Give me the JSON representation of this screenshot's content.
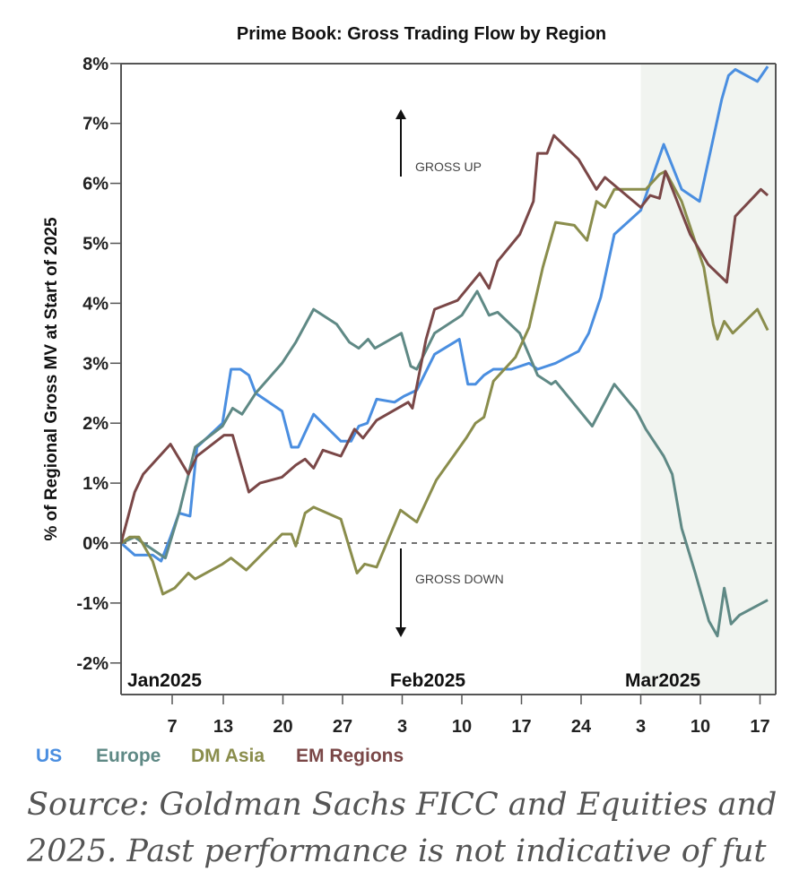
{
  "chart_data": {
    "type": "line",
    "title": "Prime Book: Gross Trading Flow by Region",
    "ylabel": "% of Regional Gross MV at Start of 2025",
    "xlabel": "",
    "x_units": "days since Jan 1, 2025",
    "ylim": [
      -2.5,
      8
    ],
    "xlim": [
      0,
      76.8
    ],
    "yticks": [
      {
        "v": 8,
        "label": "8%"
      },
      {
        "v": 7,
        "label": "7%"
      },
      {
        "v": 6,
        "label": "6%"
      },
      {
        "v": 5,
        "label": "5%"
      },
      {
        "v": 4,
        "label": "4%"
      },
      {
        "v": 3,
        "label": "3%"
      },
      {
        "v": 2,
        "label": "2%"
      },
      {
        "v": 1,
        "label": "1%"
      },
      {
        "v": 0,
        "label": "0%"
      },
      {
        "v": -1,
        "label": "-1%"
      },
      {
        "v": -2,
        "label": "-2%"
      }
    ],
    "xticks": [
      {
        "d": 6,
        "label": "7"
      },
      {
        "d": 12,
        "label": "13"
      },
      {
        "d": 19,
        "label": "20"
      },
      {
        "d": 26,
        "label": "27"
      },
      {
        "d": 33,
        "label": "3"
      },
      {
        "d": 40,
        "label": "10"
      },
      {
        "d": 47,
        "label": "17"
      },
      {
        "d": 54,
        "label": "24"
      },
      {
        "d": 61,
        "label": "3"
      },
      {
        "d": 68,
        "label": "10"
      },
      {
        "d": 75,
        "label": "17"
      }
    ],
    "months": [
      {
        "d": 0,
        "label": "Jan2025"
      },
      {
        "d": 31,
        "label": "Feb2025"
      },
      {
        "d": 59,
        "label": "Mar2025"
      }
    ],
    "shaded_from_day": 61,
    "reference_line": 0,
    "annotations": {
      "up": "GROSS UP",
      "down": "GROSS DOWN"
    },
    "legend_position": "bottom-left",
    "series": [
      {
        "name": "US",
        "color": "#4a8ee0",
        "points": [
          [
            0,
            0
          ],
          [
            1.6,
            -0.2
          ],
          [
            3.7,
            -0.2
          ],
          [
            4.7,
            -0.3
          ],
          [
            5.8,
            0.1
          ],
          [
            6.8,
            0.5
          ],
          [
            8.1,
            0.45
          ],
          [
            8.9,
            1.6
          ],
          [
            11.9,
            2.0
          ],
          [
            12.9,
            2.9
          ],
          [
            14,
            2.9
          ],
          [
            15,
            2.8
          ],
          [
            15.8,
            2.5
          ],
          [
            18.9,
            2.2
          ],
          [
            20,
            1.6
          ],
          [
            20.8,
            1.6
          ],
          [
            22.6,
            2.15
          ],
          [
            25.8,
            1.7
          ],
          [
            27,
            1.7
          ],
          [
            27.9,
            1.95
          ],
          [
            28.9,
            2.0
          ],
          [
            30,
            2.4
          ],
          [
            32.1,
            2.35
          ],
          [
            33.2,
            2.45
          ],
          [
            34.7,
            2.55
          ],
          [
            36.8,
            3.15
          ],
          [
            39.7,
            3.4
          ],
          [
            40.7,
            2.65
          ],
          [
            41.6,
            2.65
          ],
          [
            42.6,
            2.8
          ],
          [
            43.7,
            2.9
          ],
          [
            45.8,
            2.9
          ],
          [
            47.9,
            3.0
          ],
          [
            48.9,
            2.9
          ],
          [
            51,
            3.0
          ],
          [
            53.7,
            3.2
          ],
          [
            54.9,
            3.5
          ],
          [
            56.3,
            4.1
          ],
          [
            57.9,
            5.15
          ],
          [
            61,
            5.55
          ],
          [
            63.7,
            6.65
          ],
          [
            65.8,
            5.9
          ],
          [
            67.9,
            5.7
          ],
          [
            70.5,
            7.4
          ],
          [
            71.3,
            7.8
          ],
          [
            72.1,
            7.9
          ],
          [
            74.7,
            7.7
          ],
          [
            75.9,
            7.95
          ]
        ]
      },
      {
        "name": "Europe",
        "color": "#5f8985",
        "points": [
          [
            0,
            0
          ],
          [
            1.6,
            0.1
          ],
          [
            2.6,
            0
          ],
          [
            5.2,
            -0.25
          ],
          [
            6.8,
            0.5
          ],
          [
            8.7,
            1.6
          ],
          [
            11.9,
            1.95
          ],
          [
            13.1,
            2.25
          ],
          [
            14.2,
            2.15
          ],
          [
            15.8,
            2.5
          ],
          [
            18.9,
            3.0
          ],
          [
            20.5,
            3.35
          ],
          [
            22.6,
            3.9
          ],
          [
            25.3,
            3.65
          ],
          [
            26.8,
            3.35
          ],
          [
            27.9,
            3.25
          ],
          [
            29,
            3.4
          ],
          [
            29.8,
            3.25
          ],
          [
            32.9,
            3.5
          ],
          [
            34,
            2.95
          ],
          [
            34.7,
            2.9
          ],
          [
            36.8,
            3.5
          ],
          [
            40,
            3.8
          ],
          [
            41.8,
            4.2
          ],
          [
            43.2,
            3.8
          ],
          [
            44.2,
            3.85
          ],
          [
            46.8,
            3.5
          ],
          [
            48.9,
            2.8
          ],
          [
            50.5,
            2.65
          ],
          [
            51,
            2.7
          ],
          [
            55.3,
            1.95
          ],
          [
            57.9,
            2.65
          ],
          [
            60.5,
            2.2
          ],
          [
            61.6,
            1.9
          ],
          [
            63.7,
            1.45
          ],
          [
            64.7,
            1.15
          ],
          [
            65.8,
            0.25
          ],
          [
            67.4,
            -0.5
          ],
          [
            69,
            -1.3
          ],
          [
            70,
            -1.55
          ],
          [
            70.8,
            -0.75
          ],
          [
            71.6,
            -1.35
          ],
          [
            72.6,
            -1.2
          ],
          [
            75.9,
            -0.95
          ]
        ]
      },
      {
        "name": "DM Asia",
        "color": "#8a8d4c",
        "points": [
          [
            0,
            0
          ],
          [
            1,
            0.1
          ],
          [
            2.1,
            0.1
          ],
          [
            3.7,
            -0.3
          ],
          [
            4.9,
            -0.85
          ],
          [
            6.3,
            -0.75
          ],
          [
            7.9,
            -0.5
          ],
          [
            8.7,
            -0.6
          ],
          [
            11.9,
            -0.35
          ],
          [
            12.9,
            -0.25
          ],
          [
            14.7,
            -0.45
          ],
          [
            18.9,
            0.15
          ],
          [
            20,
            0.15
          ],
          [
            20.5,
            -0.05
          ],
          [
            21.6,
            0.5
          ],
          [
            22.6,
            0.6
          ],
          [
            25.8,
            0.4
          ],
          [
            27.7,
            -0.5
          ],
          [
            28.6,
            -0.35
          ],
          [
            30,
            -0.4
          ],
          [
            32.8,
            0.55
          ],
          [
            34.7,
            0.35
          ],
          [
            37,
            1.05
          ],
          [
            40.5,
            1.75
          ],
          [
            41.6,
            2.0
          ],
          [
            42.6,
            2.1
          ],
          [
            43.7,
            2.7
          ],
          [
            46.3,
            3.1
          ],
          [
            47.9,
            3.6
          ],
          [
            49.5,
            4.6
          ],
          [
            51,
            5.35
          ],
          [
            53.2,
            5.3
          ],
          [
            54.7,
            5.05
          ],
          [
            55.8,
            5.7
          ],
          [
            56.8,
            5.6
          ],
          [
            57.9,
            5.9
          ],
          [
            61.6,
            5.9
          ],
          [
            63.2,
            6.15
          ],
          [
            63.9,
            6.2
          ],
          [
            65.8,
            5.7
          ],
          [
            68.4,
            4.6
          ],
          [
            69.5,
            3.65
          ],
          [
            70,
            3.4
          ],
          [
            70.8,
            3.7
          ],
          [
            71.8,
            3.5
          ],
          [
            74.7,
            3.9
          ],
          [
            75.9,
            3.55
          ]
        ]
      },
      {
        "name": "EM Regions",
        "color": "#7a4747",
        "points": [
          [
            0,
            0
          ],
          [
            1.6,
            0.85
          ],
          [
            2.6,
            1.15
          ],
          [
            5.8,
            1.65
          ],
          [
            7.9,
            1.15
          ],
          [
            8.9,
            1.45
          ],
          [
            12.1,
            1.8
          ],
          [
            13.1,
            1.8
          ],
          [
            15,
            0.85
          ],
          [
            16.3,
            1.0
          ],
          [
            18.9,
            1.1
          ],
          [
            20.5,
            1.3
          ],
          [
            21.6,
            1.4
          ],
          [
            22.6,
            1.25
          ],
          [
            23.7,
            1.55
          ],
          [
            25.8,
            1.45
          ],
          [
            27.4,
            1.9
          ],
          [
            28.4,
            1.75
          ],
          [
            30,
            2.05
          ],
          [
            33.7,
            2.35
          ],
          [
            34.2,
            2.25
          ],
          [
            35.8,
            3.4
          ],
          [
            36.8,
            3.9
          ],
          [
            39.5,
            4.05
          ],
          [
            42.1,
            4.5
          ],
          [
            43.2,
            4.25
          ],
          [
            44.2,
            4.7
          ],
          [
            46.8,
            5.15
          ],
          [
            48.4,
            5.7
          ],
          [
            48.9,
            6.5
          ],
          [
            50,
            6.5
          ],
          [
            50.8,
            6.8
          ],
          [
            53.7,
            6.4
          ],
          [
            55.8,
            5.9
          ],
          [
            56.8,
            6.1
          ],
          [
            61,
            5.6
          ],
          [
            62.1,
            5.8
          ],
          [
            63.2,
            5.75
          ],
          [
            63.9,
            6.2
          ],
          [
            66.8,
            5.15
          ],
          [
            68.9,
            4.65
          ],
          [
            71.1,
            4.35
          ],
          [
            72.1,
            5.45
          ],
          [
            75.1,
            5.9
          ],
          [
            75.9,
            5.8
          ]
        ]
      }
    ]
  },
  "source": {
    "line1": "Source: Goldman Sachs FICC and Equities and",
    "line2": "2025. Past performance is not indicative of fut"
  }
}
